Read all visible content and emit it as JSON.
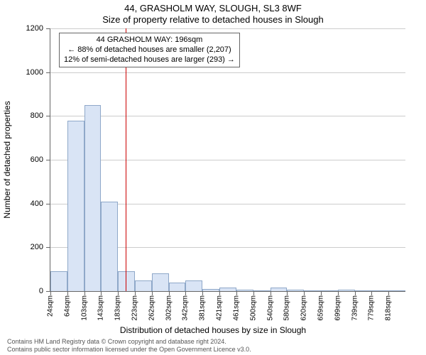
{
  "title_main": "44, GRASHOLM WAY, SLOUGH, SL3 8WF",
  "title_sub": "Size of property relative to detached houses in Slough",
  "ylabel": "Number of detached properties",
  "xlabel": "Distribution of detached houses by size in Slough",
  "footer_line1": "Contains HM Land Registry data © Crown copyright and database right 2024.",
  "footer_line2": "Contains public sector information licensed under the Open Government Licence v3.0.",
  "chart": {
    "type": "histogram",
    "ymax": 1200,
    "ytick_step": 200,
    "xtick_labels": [
      "24sqm",
      "64sqm",
      "103sqm",
      "143sqm",
      "183sqm",
      "223sqm",
      "262sqm",
      "302sqm",
      "342sqm",
      "381sqm",
      "421sqm",
      "461sqm",
      "500sqm",
      "540sqm",
      "580sqm",
      "620sqm",
      "659sqm",
      "699sqm",
      "739sqm",
      "779sqm",
      "818sqm"
    ],
    "bar_values": [
      90,
      780,
      850,
      410,
      90,
      50,
      80,
      40,
      50,
      10,
      15,
      5,
      0,
      15,
      5,
      0,
      0,
      5,
      0,
      0,
      0
    ],
    "bar_fill": "#d9e4f5",
    "bar_stroke": "#8fa8c9",
    "grid_color": "#cccccc",
    "refline_x_value": 196,
    "refline_color": "#cc0000",
    "x_domain_min": 24,
    "x_domain_max": 838,
    "annotation": {
      "line1": "44 GRASHOLM WAY: 196sqm",
      "line2": "← 88% of detached houses are smaller (2,207)",
      "line3": "12% of semi-detached houses are larger (293) →"
    }
  }
}
